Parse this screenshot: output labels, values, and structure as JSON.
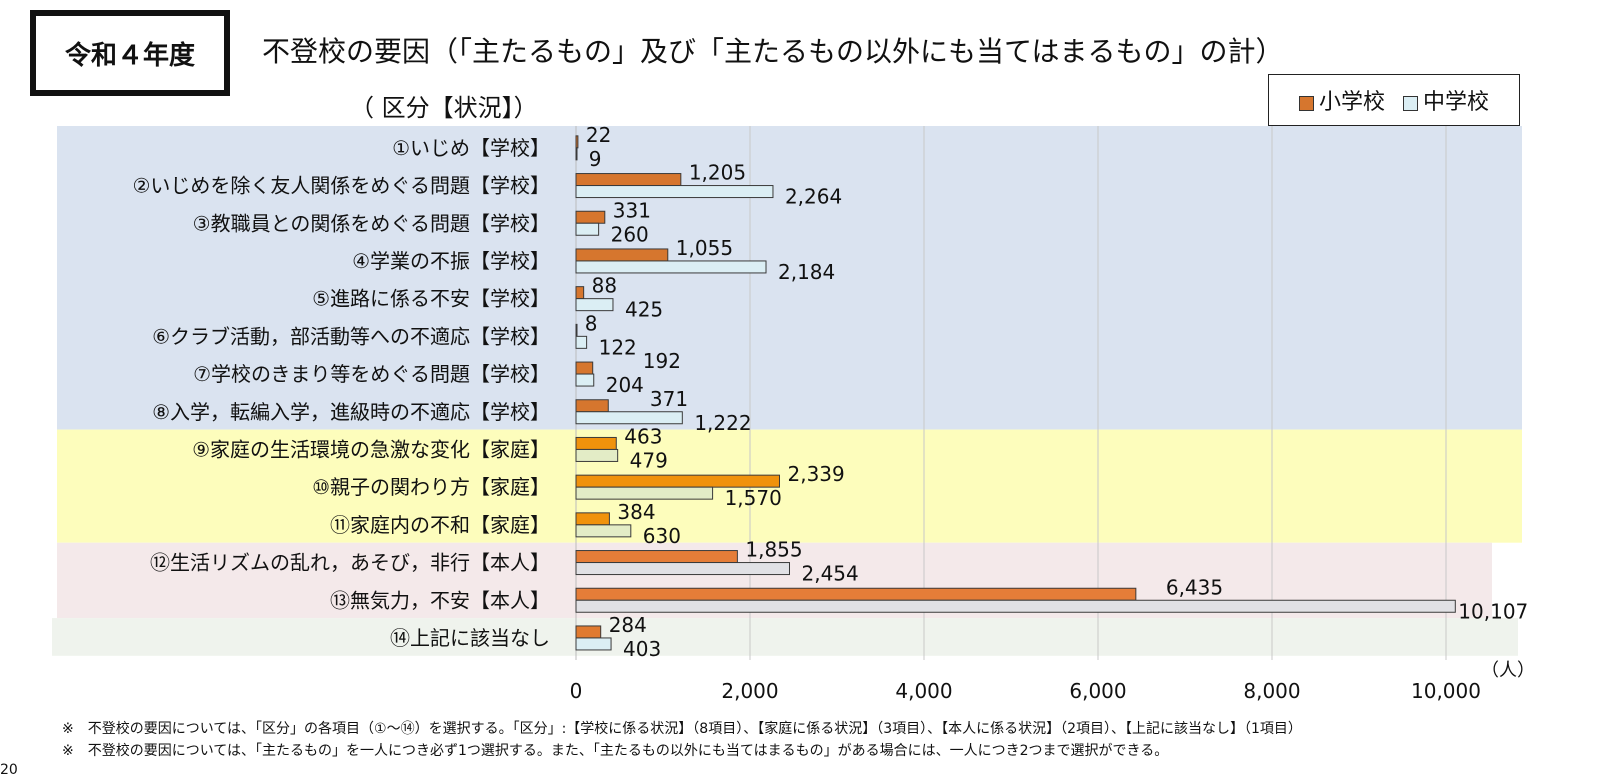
{
  "badge": "令和４年度",
  "title": "不登校の要因（「主たるもの」及び「主たるもの以外にも当てはまるもの」の計）",
  "subtitle": "（ 区分【状況】）",
  "notes": [
    "※　不登校の要因については、「区分」の各項目（①～⑭）を選択する。「区分」:【学校に係る状況】（8項目）、【家庭に係る状況】（3項目）、【本人に係る状況】（2項目）、【上記に該当なし】（1項目）",
    "※　不登校の要因については、「主たるもの」を一人につき必ず1つ選択する。また、「主たるもの以外にも当てはまるもの」がある場合には、一人につき2つまで選択ができる。"
  ],
  "page_number": "20",
  "chart_data": {
    "type": "bar",
    "orientation": "horizontal",
    "unit_label": "（人）",
    "xlim": [
      0,
      10000
    ],
    "xticks": [
      0,
      2000,
      4000,
      6000,
      8000,
      10000
    ],
    "xtick_labels": [
      "0",
      "2,000",
      "4,000",
      "6,000",
      "8,000",
      "10,000"
    ],
    "grid": true,
    "legend_position": "top-right",
    "categories": [
      "①いじめ【学校】",
      "②いじめを除く友人関係をめぐる問題【学校】",
      "③教職員との関係をめぐる問題【学校】",
      "④学業の不振【学校】",
      "⑤進路に係る不安【学校】",
      "⑥クラブ活動，部活動等への不適応【学校】",
      "⑦学校のきまり等をめぐる問題【学校】",
      "⑧入学，転編入学，進級時の不適応【学校】",
      "⑨家庭の生活環境の急激な変化【家庭】",
      "⑩親子の関わり方【家庭】",
      "⑪家庭内の不和【家庭】",
      "⑫生活リズムの乱れ，あそび，非行【本人】",
      "⑬無気力，不安【本人】",
      "⑭上記に該当なし"
    ],
    "groups": [
      {
        "name": "学校",
        "count": 8,
        "bg": "#dae3f0",
        "c1": "#d6762e",
        "c2": "#dbeef4"
      },
      {
        "name": "家庭",
        "count": 3,
        "bg": "#fdfdbc",
        "c1": "#f0920c",
        "c2": "#e3ecc6"
      },
      {
        "name": "本人",
        "count": 2,
        "bg": "#f4e9ea",
        "c1": "#e57d38",
        "c2": "#e1e1e5"
      },
      {
        "name": "なし",
        "count": 1,
        "bg": "#eff3ed",
        "c1": "#e07a30",
        "c2": "#dbeef4"
      }
    ],
    "series": [
      {
        "name": "小学校",
        "color": "#d6762e",
        "values": [
          22,
          1205,
          331,
          1055,
          88,
          8,
          192,
          371,
          463,
          2339,
          384,
          1855,
          6435,
          284
        ],
        "labels": [
          "22",
          "1,205",
          "331",
          "1,055",
          "88",
          "8",
          "192",
          "371",
          "463",
          "2,339",
          "384",
          "1,855",
          "6,435",
          "284"
        ]
      },
      {
        "name": "中学校",
        "color": "#dbeef4",
        "values": [
          9,
          2264,
          260,
          2184,
          425,
          122,
          204,
          1222,
          479,
          1570,
          630,
          2454,
          10107,
          403
        ],
        "labels": [
          "9",
          "2,264",
          "260",
          "2,184",
          "425",
          "122",
          "204",
          "1,222",
          "479",
          "1,570",
          "630",
          "2,454",
          "10,107",
          "403"
        ]
      }
    ]
  }
}
